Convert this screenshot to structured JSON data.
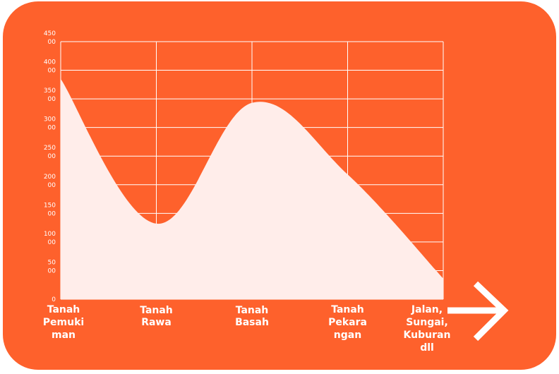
{
  "chart_data": {
    "type": "area",
    "categories": [
      "Tanah Pemukiman",
      "Tanah Rawa",
      "Tanah Basah",
      "Tanah Pekarangan",
      "Jalan, Sungai, Kuburan dll"
    ],
    "category_labels": [
      [
        "Tanah",
        "Pemuki",
        "man"
      ],
      [
        "Tanah",
        "Rawa"
      ],
      [
        "Tanah",
        "Basah"
      ],
      [
        "Tanah",
        "Pekara",
        "ngan"
      ],
      [
        "Jalan,",
        "Sungai,",
        "Kuburan",
        "dll"
      ]
    ],
    "values": [
      38500,
      13200,
      34300,
      21800,
      3600
    ],
    "ylim": [
      0,
      45000
    ],
    "yticks": [
      0,
      5000,
      10000,
      15000,
      20000,
      25000,
      30000,
      35000,
      40000,
      45000
    ],
    "ytick_labels": [
      [
        "0"
      ],
      [
        "50",
        "00"
      ],
      [
        "100",
        "00"
      ],
      [
        "150",
        "00"
      ],
      [
        "200",
        "00"
      ],
      [
        "250",
        "00"
      ],
      [
        "300",
        "00"
      ],
      [
        "350",
        "00"
      ],
      [
        "400",
        "00"
      ],
      [
        "450",
        "00"
      ]
    ],
    "title": "",
    "xlabel": "",
    "ylabel": "",
    "grid": true,
    "colors": {
      "background": "#fe612c",
      "fill": "#ffedea",
      "grid": "#ffffff"
    },
    "decor_icon": "arrow-right-icon"
  }
}
